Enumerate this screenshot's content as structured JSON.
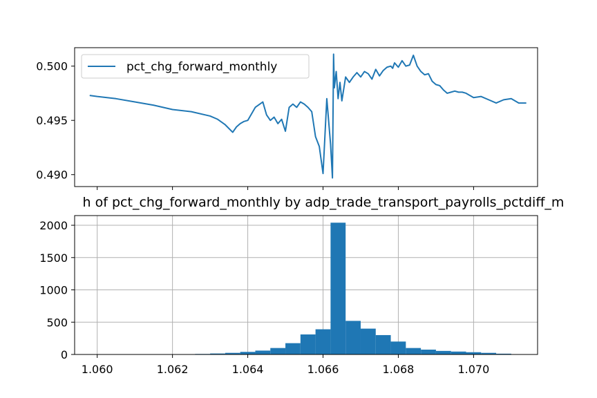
{
  "chart_data": [
    {
      "type": "line",
      "title": "",
      "xlabel": "",
      "ylabel": "",
      "ylim": [
        0.4889,
        0.5017
      ],
      "xlim": [
        1.0594,
        1.0717
      ],
      "yticks": [
        0.49,
        0.495,
        0.5
      ],
      "ytick_labels": [
        "0.490",
        "0.495",
        "0.500"
      ],
      "xtick_labels_shown": false,
      "grid": false,
      "legend_location": "upper left",
      "series": [
        {
          "name": "pct_chg_forward_monthly",
          "color": "#1f77b4",
          "x": [
            1.0598,
            1.06,
            1.0605,
            1.061,
            1.0615,
            1.062,
            1.0625,
            1.063,
            1.0632,
            1.0634,
            1.0636,
            1.0637,
            1.0638,
            1.0639,
            1.064,
            1.0642,
            1.0644,
            1.0645,
            1.0646,
            1.0647,
            1.0648,
            1.0649,
            1.065,
            1.0651,
            1.0652,
            1.0653,
            1.0654,
            1.0655,
            1.0656,
            1.0657,
            1.0658,
            1.0659,
            1.066,
            1.0661,
            1.0662,
            1.06625,
            1.06628,
            1.0663,
            1.06635,
            1.0664,
            1.06645,
            1.0665,
            1.0666,
            1.0667,
            1.0668,
            1.0669,
            1.067,
            1.0671,
            1.0672,
            1.0673,
            1.0674,
            1.0675,
            1.0676,
            1.0677,
            1.0678,
            1.06785,
            1.0679,
            1.068,
            1.0681,
            1.0682,
            1.0683,
            1.0684,
            1.0685,
            1.0686,
            1.0687,
            1.0688,
            1.0689,
            1.069,
            1.0691,
            1.0692,
            1.0693,
            1.0694,
            1.0695,
            1.0696,
            1.0697,
            1.0698,
            1.0699,
            1.07,
            1.0702,
            1.0704,
            1.0706,
            1.0708,
            1.071,
            1.0712,
            1.0714
          ],
          "y": [
            0.4973,
            0.4972,
            0.497,
            0.4967,
            0.4964,
            0.496,
            0.4958,
            0.4954,
            0.4951,
            0.4946,
            0.4939,
            0.4944,
            0.4947,
            0.4949,
            0.495,
            0.4962,
            0.4967,
            0.4955,
            0.495,
            0.4953,
            0.4947,
            0.4951,
            0.494,
            0.4962,
            0.4965,
            0.4962,
            0.4967,
            0.4965,
            0.4962,
            0.4958,
            0.4935,
            0.4926,
            0.4901,
            0.497,
            0.4928,
            0.4897,
            0.5011,
            0.498,
            0.4995,
            0.497,
            0.4985,
            0.4968,
            0.499,
            0.4985,
            0.499,
            0.4994,
            0.499,
            0.4995,
            0.4993,
            0.4988,
            0.4997,
            0.4991,
            0.4996,
            0.4999,
            0.5,
            0.4998,
            0.5003,
            0.4999,
            0.5005,
            0.5,
            0.5001,
            0.501,
            0.5,
            0.4995,
            0.4992,
            0.4993,
            0.4986,
            0.4983,
            0.4982,
            0.4978,
            0.4975,
            0.4976,
            0.4977,
            0.4976,
            0.4976,
            0.4975,
            0.4973,
            0.4971,
            0.4972,
            0.4969,
            0.4966,
            0.4969,
            0.497,
            0.4966,
            0.4966
          ]
        }
      ]
    },
    {
      "type": "bar",
      "title": "h of pct_chg_forward_monthly by adp_trade_transport_payrolls_pctdiff_m",
      "xlabel": "",
      "ylabel": "",
      "xlim": [
        1.0594,
        1.0717
      ],
      "ylim": [
        0,
        2150
      ],
      "xticks": [
        1.06,
        1.062,
        1.064,
        1.066,
        1.068,
        1.07
      ],
      "xtick_labels": [
        "1.060",
        "1.062",
        "1.064",
        "1.066",
        "1.068",
        "1.070"
      ],
      "yticks": [
        0,
        500,
        1000,
        1500,
        2000
      ],
      "ytick_labels": [
        "0",
        "500",
        "1000",
        "1500",
        "2000"
      ],
      "grid": true,
      "color": "#1f77b4",
      "bin_edges": [
        1.0598,
        1.0602,
        1.0606,
        1.061,
        1.0614,
        1.0618,
        1.0622,
        1.0626,
        1.063,
        1.0634,
        1.0638,
        1.0642,
        1.0646,
        1.065,
        1.0654,
        1.0658,
        1.0662,
        1.0666,
        1.067,
        1.0674,
        1.0678,
        1.0682,
        1.0686,
        1.069,
        1.0694,
        1.0698,
        1.0702,
        1.0706,
        1.071
      ],
      "values": [
        1,
        1,
        2,
        2,
        3,
        4,
        5,
        8,
        15,
        25,
        40,
        60,
        100,
        175,
        310,
        390,
        2040,
        520,
        400,
        300,
        200,
        100,
        75,
        55,
        45,
        35,
        25,
        12
      ]
    }
  ]
}
